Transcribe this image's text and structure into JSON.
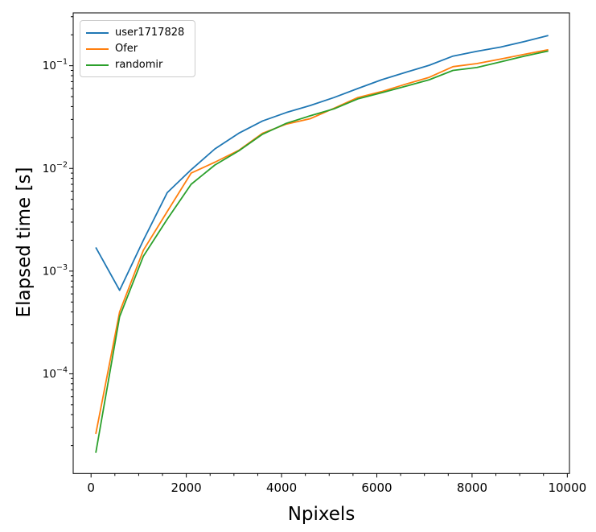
{
  "chart_data": {
    "type": "line",
    "title": "",
    "xlabel": "Npixels",
    "ylabel": "Elapsed time [s]",
    "x_scale": "linear",
    "y_scale": "log",
    "grid": false,
    "legend_position": "upper left",
    "xlim": [
      -375,
      10045
    ],
    "ylim": [
      1.07e-05,
      0.327
    ],
    "x_ticks": [
      0,
      2000,
      4000,
      6000,
      8000,
      10000
    ],
    "x_tick_labels": [
      "0",
      "2000",
      "4000",
      "6000",
      "8000",
      "10000"
    ],
    "x_minor_step": 500,
    "y_tick_exponents": [
      -4,
      -3,
      -2,
      -1
    ],
    "x": [
      100,
      600,
      1100,
      1600,
      2100,
      2600,
      3100,
      3600,
      4100,
      4600,
      5100,
      5600,
      6100,
      6600,
      7100,
      7600,
      8100,
      8600,
      9100,
      9600
    ],
    "series": [
      {
        "name": "user1717828",
        "color": "#1f77b4",
        "values": [
          0.0017,
          0.00065,
          0.002,
          0.0058,
          0.0097,
          0.0155,
          0.022,
          0.029,
          0.035,
          0.041,
          0.049,
          0.06,
          0.073,
          0.086,
          0.101,
          0.124,
          0.138,
          0.152,
          0.172,
          0.197
        ]
      },
      {
        "name": "Ofer",
        "color": "#ff7f0e",
        "values": [
          2.6e-05,
          0.0004,
          0.0016,
          0.0038,
          0.009,
          0.0115,
          0.015,
          0.022,
          0.027,
          0.0305,
          0.0385,
          0.049,
          0.056,
          0.066,
          0.077,
          0.098,
          0.105,
          0.116,
          0.129,
          0.143
        ]
      },
      {
        "name": "randomir",
        "color": "#2ca02c",
        "values": [
          1.7e-05,
          0.00036,
          0.0014,
          0.0032,
          0.007,
          0.0108,
          0.0148,
          0.0215,
          0.0275,
          0.0325,
          0.038,
          0.0475,
          0.0545,
          0.063,
          0.073,
          0.09,
          0.096,
          0.109,
          0.124,
          0.139
        ]
      }
    ]
  }
}
